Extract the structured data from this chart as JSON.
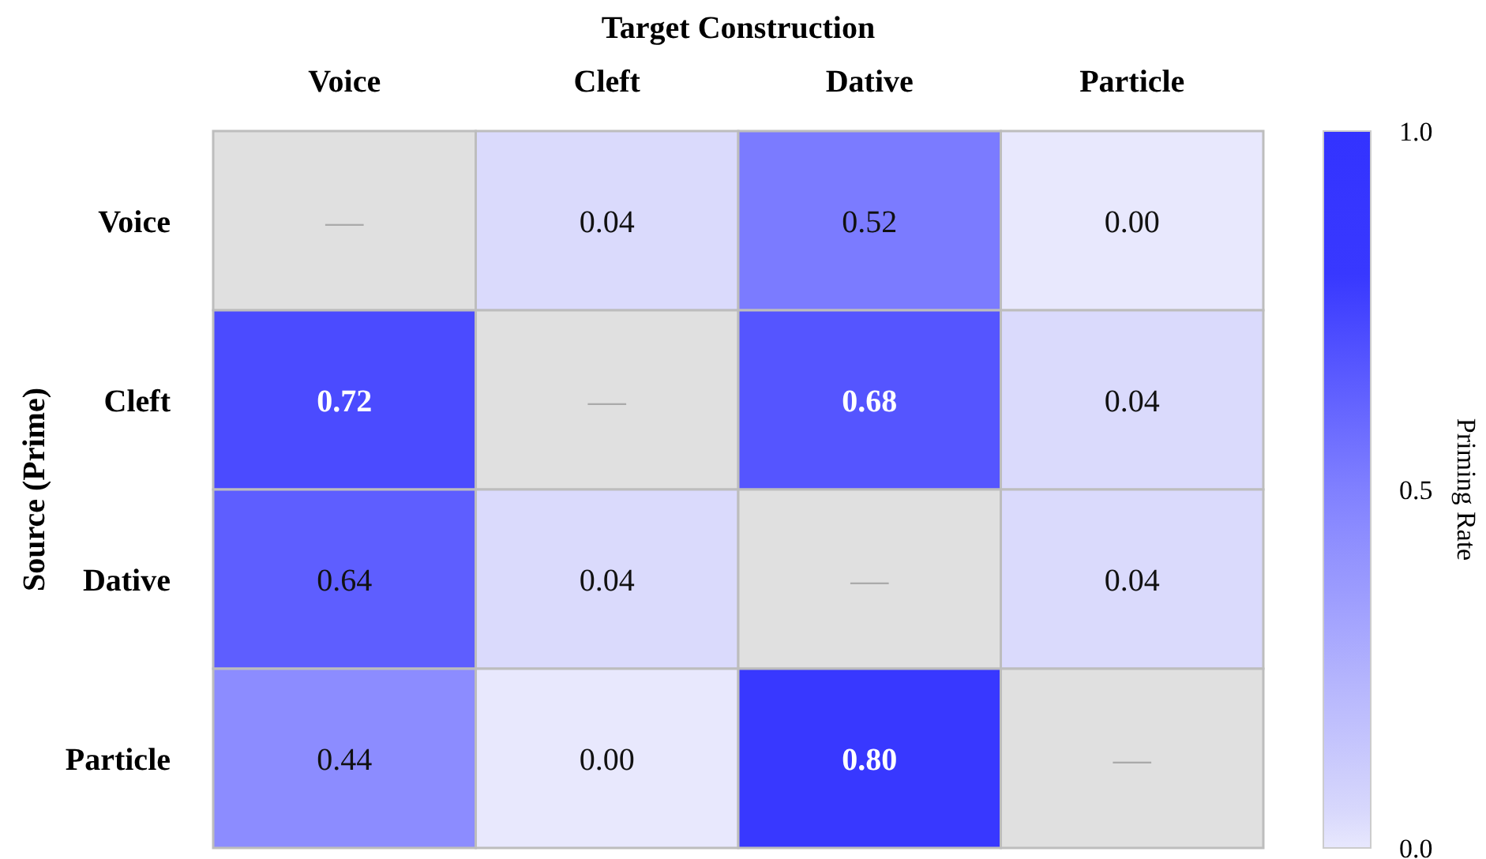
{
  "chart_data": {
    "type": "heatmap",
    "xlabel": "Target Construction",
    "ylabel": "Source (Prime)",
    "clabel": "Priming Rate",
    "categories": [
      "Voice",
      "Cleft",
      "Dative",
      "Particle"
    ],
    "y_categories": [
      "Voice",
      "Cleft",
      "Dative",
      "Particle"
    ],
    "cells": [
      [
        null,
        0.04,
        0.52,
        0.0
      ],
      [
        0.72,
        null,
        0.68,
        0.04
      ],
      [
        0.64,
        0.04,
        null,
        0.04
      ],
      [
        0.44,
        0.0,
        0.8,
        null
      ]
    ],
    "cell_labels": [
      [
        "—",
        "0.04",
        "0.52",
        "0.00"
      ],
      [
        "0.72",
        "—",
        "0.68",
        "0.04"
      ],
      [
        "0.64",
        "0.04",
        "—",
        "0.04"
      ],
      [
        "0.44",
        "0.00",
        "0.80",
        "—"
      ]
    ],
    "data_labels": true,
    "clim": [
      0.0,
      1.0
    ],
    "cticks": [
      {
        "value": 0,
        "label": "0.0"
      },
      {
        "value": 0.5,
        "label": "0.5"
      },
      {
        "value": 1,
        "label": "1.0"
      }
    ]
  }
}
